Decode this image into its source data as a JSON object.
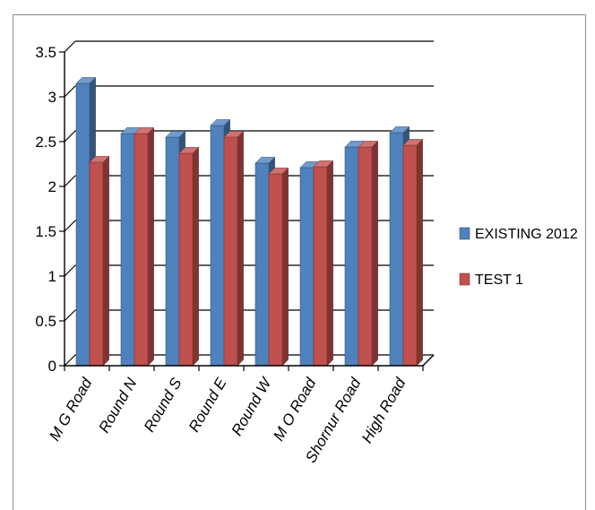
{
  "chart_data": {
    "type": "bar",
    "categories": [
      "M G Road",
      "Round N",
      "Round S",
      "Round E",
      "Round W",
      "M O Road",
      "Shornur Road",
      "High Road"
    ],
    "series": [
      {
        "name": "EXISTING 2012",
        "values": [
          3.15,
          2.59,
          2.55,
          2.68,
          2.26,
          2.21,
          2.44,
          2.6
        ],
        "color": "#4f81bd"
      },
      {
        "name": "TEST 1",
        "values": [
          2.27,
          2.59,
          2.37,
          2.55,
          2.14,
          2.22,
          2.44,
          2.46
        ],
        "color": "#c0504d"
      }
    ],
    "y_ticks": [
      "0",
      "0.5",
      "1",
      "1.5",
      "2",
      "2.5",
      "3",
      "3.5"
    ],
    "ylim": [
      0,
      3.5
    ],
    "grid": true,
    "legend_position": "right",
    "style": "3d-clustered-column"
  }
}
